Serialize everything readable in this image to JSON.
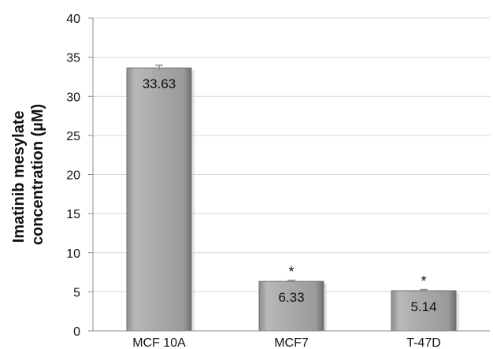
{
  "chart_data": {
    "type": "bar",
    "title": "",
    "xlabel": "",
    "ylabel_lines": [
      "Imatinib mesylate",
      "concentration (µM)"
    ],
    "categories": [
      "MCF 10A",
      "MCF7",
      "T-47D"
    ],
    "values": [
      33.63,
      6.33,
      5.14
    ],
    "data_labels": [
      "33.63",
      "6.33",
      "5.14"
    ],
    "error": [
      0.35,
      0.15,
      0.15
    ],
    "annotations": [
      "",
      "*",
      "*"
    ],
    "ylim": [
      0,
      40
    ],
    "yticks": [
      0,
      5,
      10,
      15,
      20,
      25,
      30,
      35,
      40
    ],
    "grid": true,
    "bar_color": "#a6a6a6",
    "error_color": "#7f93b0"
  }
}
